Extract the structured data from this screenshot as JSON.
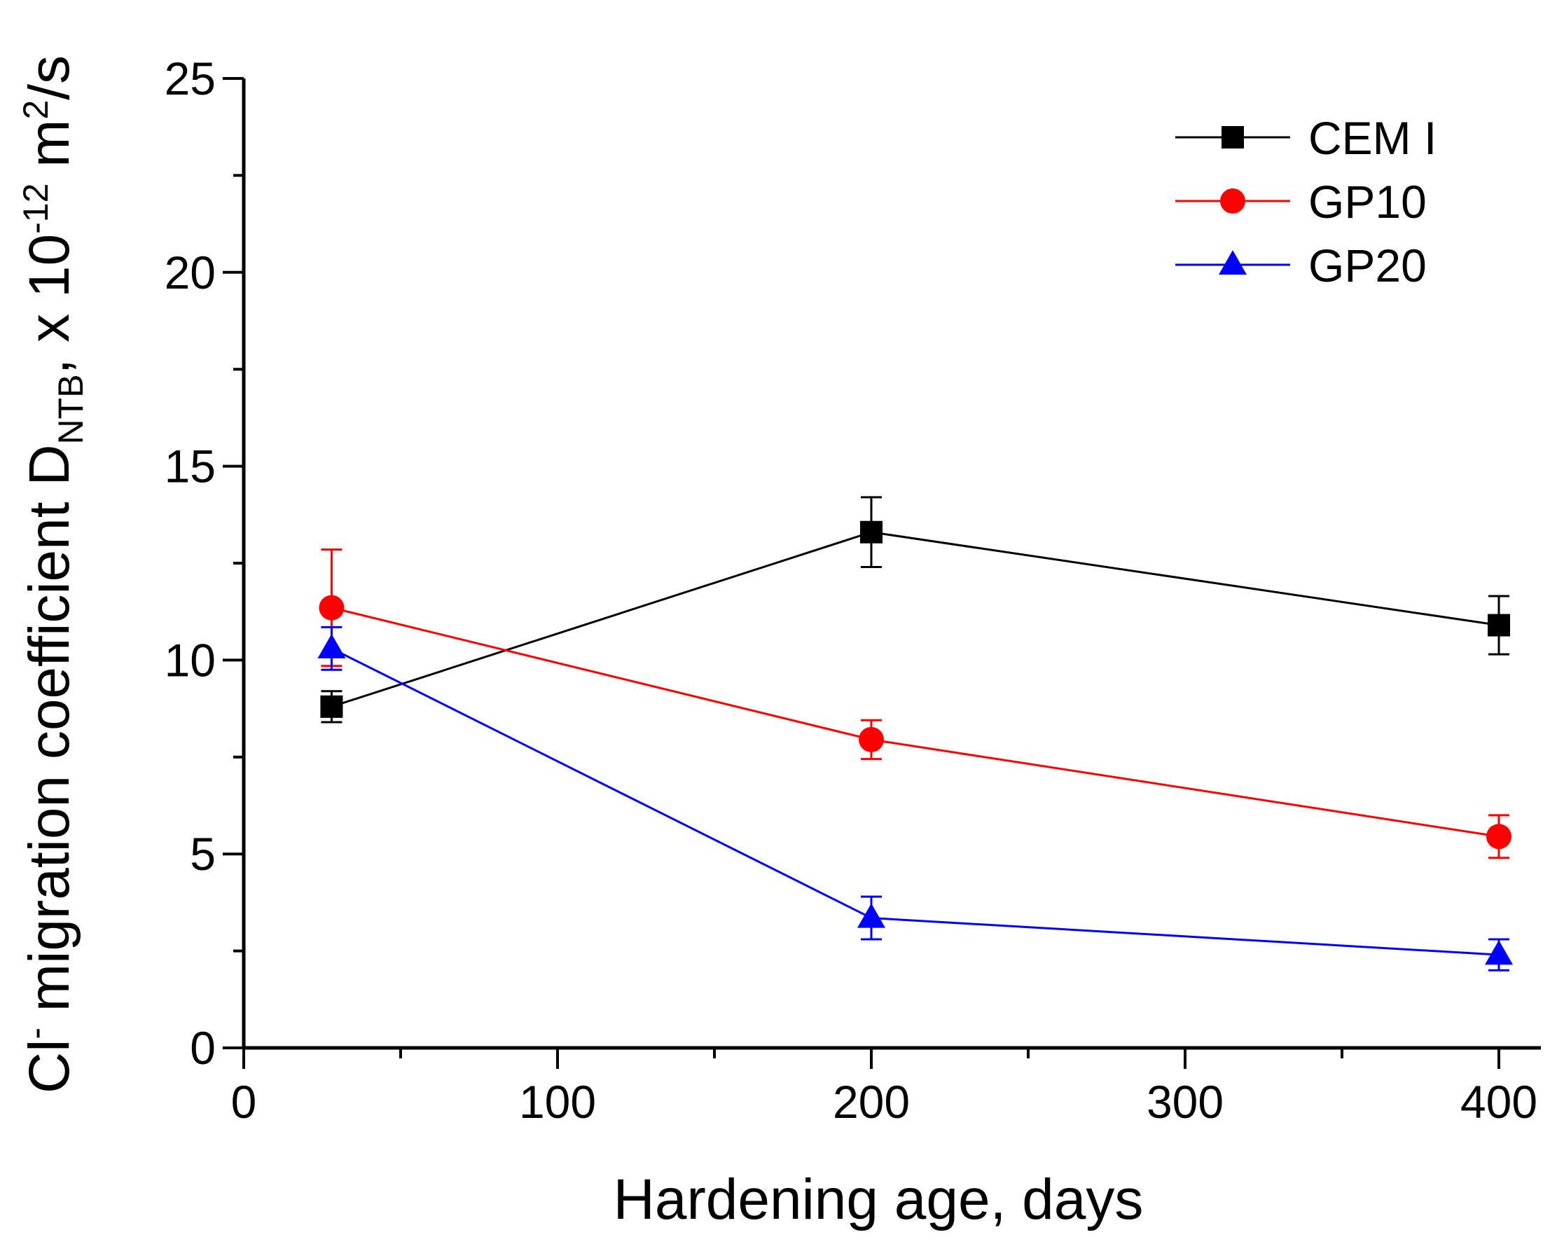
{
  "chart_data": {
    "type": "line",
    "title": "",
    "xlabel": "Hardening age, days",
    "ylabel": {
      "prefix": "Cl",
      "prefix_sup": "-",
      "main": " migration coefficient D",
      "sub": "NTB",
      "mid": ", x 10",
      "exp": "-12",
      "unit": " m",
      "unit_sup": "2",
      "tail": "/s"
    },
    "xlim": [
      0,
      400
    ],
    "ylim": [
      0,
      25
    ],
    "x_ticks": [
      0,
      100,
      200,
      300,
      400
    ],
    "x_tick_labels": [
      "0",
      "100",
      "200",
      "300",
      "400"
    ],
    "y_ticks": [
      0,
      5,
      10,
      15,
      20,
      25
    ],
    "y_tick_labels": [
      "0",
      "5",
      "10",
      "15",
      "20",
      "25"
    ],
    "grid": false,
    "legend_position": "top-right",
    "series": [
      {
        "name": "CEM I",
        "color": "#000000",
        "marker": "square",
        "x": [
          28,
          200,
          400
        ],
        "y": [
          8.8,
          13.3,
          10.9
        ],
        "err": [
          0.4,
          0.9,
          0.75
        ]
      },
      {
        "name": "GP10",
        "color": "#ff0000",
        "marker": "circle",
        "x": [
          28,
          200,
          400
        ],
        "y": [
          11.35,
          7.95,
          5.45
        ],
        "err": [
          1.5,
          0.5,
          0.55
        ]
      },
      {
        "name": "GP20",
        "color": "#0000ff",
        "marker": "triangle",
        "x": [
          28,
          200,
          400
        ],
        "y": [
          10.3,
          3.35,
          2.4
        ],
        "err": [
          0.55,
          0.55,
          0.4
        ]
      }
    ]
  }
}
